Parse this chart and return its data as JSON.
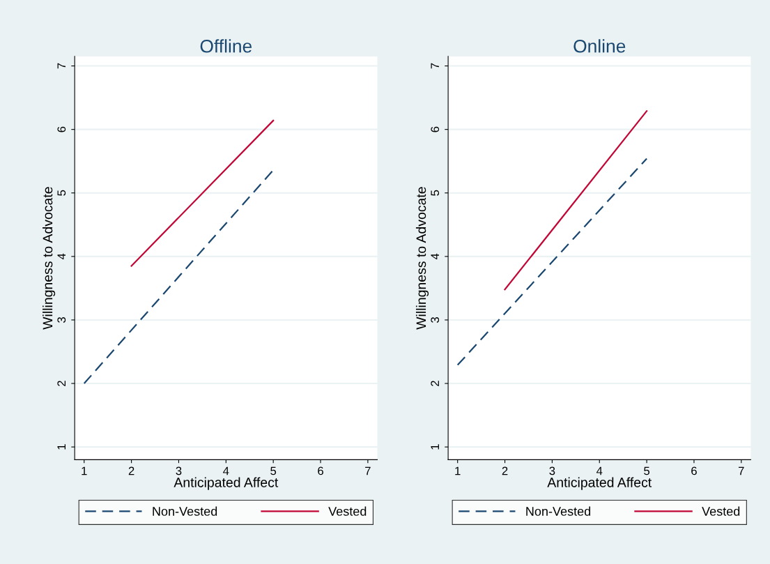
{
  "chart_data": [
    {
      "type": "line",
      "title": "Offline",
      "xlabel": "Anticipated Affect",
      "ylabel": "Willingness to Advocate",
      "xlim": [
        0.8,
        7.2
      ],
      "ylim": [
        0.8,
        7.15
      ],
      "xticks": [
        1,
        2,
        3,
        4,
        5,
        6,
        7
      ],
      "yticks": [
        1,
        2,
        3,
        4,
        5,
        6,
        7
      ],
      "grid": "y",
      "legend": "bottom",
      "series": [
        {
          "name": "Non-Vested",
          "color": "#1a476f",
          "line_style": "dashed",
          "x": [
            1,
            5
          ],
          "values": [
            2.0,
            5.36
          ]
        },
        {
          "name": "Vested",
          "color": "#c10534",
          "line_style": "solid",
          "x": [
            2,
            5
          ],
          "values": [
            3.85,
            6.14
          ]
        }
      ]
    },
    {
      "type": "line",
      "title": "Online",
      "xlabel": "Anticipated Affect",
      "ylabel": "Willingness to Advocate",
      "xlim": [
        0.8,
        7.2
      ],
      "ylim": [
        0.8,
        7.15
      ],
      "xticks": [
        1,
        2,
        3,
        4,
        5,
        6,
        7
      ],
      "yticks": [
        1,
        2,
        3,
        4,
        5,
        6,
        7
      ],
      "grid": "y",
      "legend": "bottom",
      "series": [
        {
          "name": "Non-Vested",
          "color": "#1a476f",
          "line_style": "dashed",
          "x": [
            1,
            5
          ],
          "values": [
            2.29,
            5.54
          ]
        },
        {
          "name": "Vested",
          "color": "#c10534",
          "line_style": "solid",
          "x": [
            2,
            5
          ],
          "values": [
            3.48,
            6.29
          ]
        }
      ]
    }
  ]
}
